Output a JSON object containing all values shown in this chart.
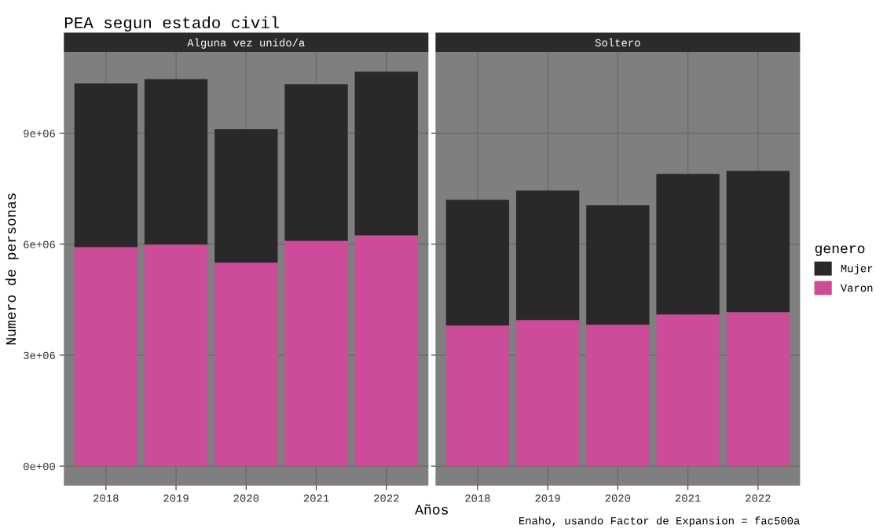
{
  "chart_data": [
    {
      "type": "bar",
      "stacked": true,
      "title": "PEA segun estado civil",
      "subtitle": "Alguna vez unido/a",
      "xlabel": "Años",
      "ylabel": "Numero de personas",
      "legend_title": "genero",
      "categories": [
        "2018",
        "2019",
        "2020",
        "2021",
        "2022"
      ],
      "series": [
        {
          "name": "Varon",
          "color": "#cc4c99",
          "values": [
            5920000,
            5990000,
            5500000,
            6090000,
            6240000
          ]
        },
        {
          "name": "Mujer",
          "color": "#2b2829",
          "values": [
            4420000,
            4470000,
            3610000,
            4230000,
            4420000
          ]
        }
      ],
      "ylim": [
        -530000,
        11190000
      ],
      "yticks": [
        {
          "value": 0,
          "label": "0e+00"
        },
        {
          "value": 3000000,
          "label": "3e+06"
        },
        {
          "value": 6000000,
          "label": "6e+06"
        },
        {
          "value": 9000000,
          "label": "9e+06"
        }
      ],
      "grid": true,
      "legend": "right"
    },
    {
      "type": "bar",
      "stacked": true,
      "subtitle": "Soltero",
      "annotations": [
        "Enaho, usando Factor de Expansion = fac500a"
      ],
      "categories": [
        "2018",
        "2019",
        "2020",
        "2021",
        "2022"
      ],
      "series": [
        {
          "color": "#cc4c99",
          "values": [
            3800000,
            3950000,
            3820000,
            4100000,
            4160000
          ]
        },
        {
          "color": "#2b2829",
          "values": [
            3400000,
            3500000,
            3230000,
            3800000,
            3820000
          ]
        }
      ],
      "ylim": [
        -530000,
        11190000
      ],
      "yticks": [
        0,
        3000000,
        6000000,
        9000000
      ],
      "tick_labels": "x",
      "grid": true
    }
  ]
}
